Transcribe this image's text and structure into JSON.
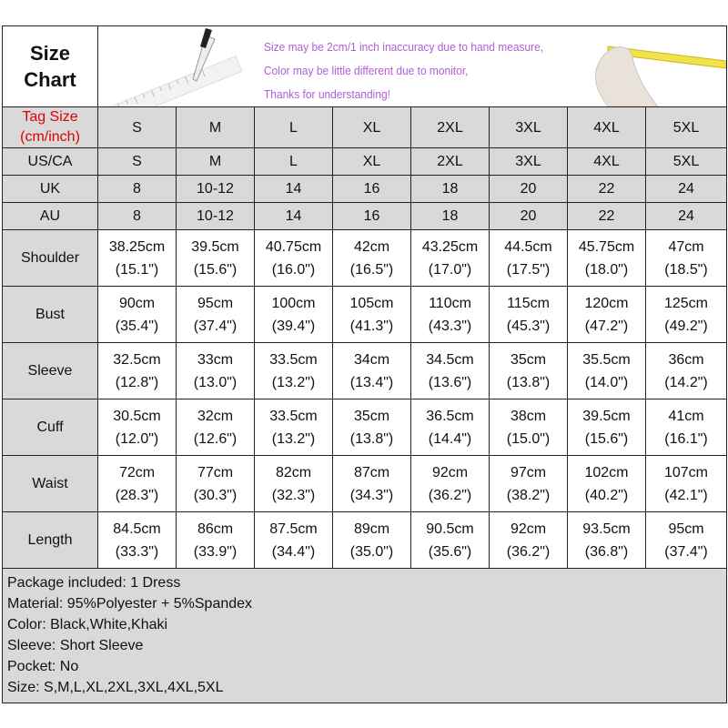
{
  "title": "Size\nChart",
  "title_lines": [
    "Size",
    "Chart"
  ],
  "banner": {
    "lines": [
      "Size may be 2cm/1 inch inaccuracy due to hand measure,",
      "Color may be little different due to monitor,",
      "Thanks for understanding!"
    ],
    "text_color": "#b05cd8"
  },
  "tag_label_lines": [
    "Tag Size",
    "(cm/inch)"
  ],
  "tag_label_color": "#e00000",
  "sizes": [
    "S",
    "M",
    "L",
    "XL",
    "2XL",
    "3XL",
    "4XL",
    "5XL"
  ],
  "conversion_rows": [
    {
      "label": "US/CA",
      "values": [
        "S",
        "M",
        "L",
        "XL",
        "2XL",
        "3XL",
        "4XL",
        "5XL"
      ]
    },
    {
      "label": "UK",
      "values": [
        "8",
        "10-12",
        "14",
        "16",
        "18",
        "20",
        "22",
        "24"
      ]
    },
    {
      "label": "AU",
      "values": [
        "8",
        "10-12",
        "14",
        "16",
        "18",
        "20",
        "22",
        "24"
      ]
    }
  ],
  "measurement_rows": [
    {
      "label": "Shoulder",
      "cm": [
        "38.25cm",
        "39.5cm",
        "40.75cm",
        "42cm",
        "43.25cm",
        "44.5cm",
        "45.75cm",
        "47cm"
      ],
      "inch": [
        "(15.1\")",
        "(15.6\")",
        "(16.0\")",
        "(16.5\")",
        "(17.0\")",
        "(17.5\")",
        "(18.0\")",
        "(18.5\")"
      ]
    },
    {
      "label": "Bust",
      "cm": [
        "90cm",
        "95cm",
        "100cm",
        "105cm",
        "110cm",
        "115cm",
        "120cm",
        "125cm"
      ],
      "inch": [
        "(35.4\")",
        "(37.4\")",
        "(39.4\")",
        "(41.3\")",
        "(43.3\")",
        "(45.3\")",
        "(47.2\")",
        "(49.2\")"
      ]
    },
    {
      "label": "Sleeve",
      "cm": [
        "32.5cm",
        "33cm",
        "33.5cm",
        "34cm",
        "34.5cm",
        "35cm",
        "35.5cm",
        "36cm"
      ],
      "inch": [
        "(12.8\")",
        "(13.0\")",
        "(13.2\")",
        "(13.4\")",
        "(13.6\")",
        "(13.8\")",
        "(14.0\")",
        "(14.2\")"
      ]
    },
    {
      "label": "Cuff",
      "cm": [
        "30.5cm",
        "32cm",
        "33.5cm",
        "35cm",
        "36.5cm",
        "38cm",
        "39.5cm",
        "41cm"
      ],
      "inch": [
        "(12.0\")",
        "(12.6\")",
        "(13.2\")",
        "(13.8\")",
        "(14.4\")",
        "(15.0\")",
        "(15.6\")",
        "(16.1\")"
      ]
    },
    {
      "label": "Waist",
      "cm": [
        "72cm",
        "77cm",
        "82cm",
        "87cm",
        "92cm",
        "97cm",
        "102cm",
        "107cm"
      ],
      "inch": [
        "(28.3\")",
        "(30.3\")",
        "(32.3\")",
        "(34.3\")",
        "(36.2\")",
        "(38.2\")",
        "(40.2\")",
        "(42.1\")"
      ]
    },
    {
      "label": "Length",
      "cm": [
        "84.5cm",
        "86cm",
        "87.5cm",
        "89cm",
        "90.5cm",
        "92cm",
        "93.5cm",
        "95cm"
      ],
      "inch": [
        "(33.3\")",
        "(33.9\")",
        "(34.4\")",
        "(35.0\")",
        "(35.6\")",
        "(36.2\")",
        "(36.8\")",
        "(37.4\")"
      ]
    }
  ],
  "notes": [
    "Package included: 1 Dress",
    "Material: 95%Polyester + 5%Spandex",
    "Color: Black,White,Khaki",
    "Sleeve: Short Sleeve",
    "Pocket: No",
    "Size: S,M,L,XL,2XL,3XL,4XL,5XL"
  ],
  "icons": [
    "pencil-ruler-illustration",
    "hand-measuring-tape-illustration"
  ]
}
